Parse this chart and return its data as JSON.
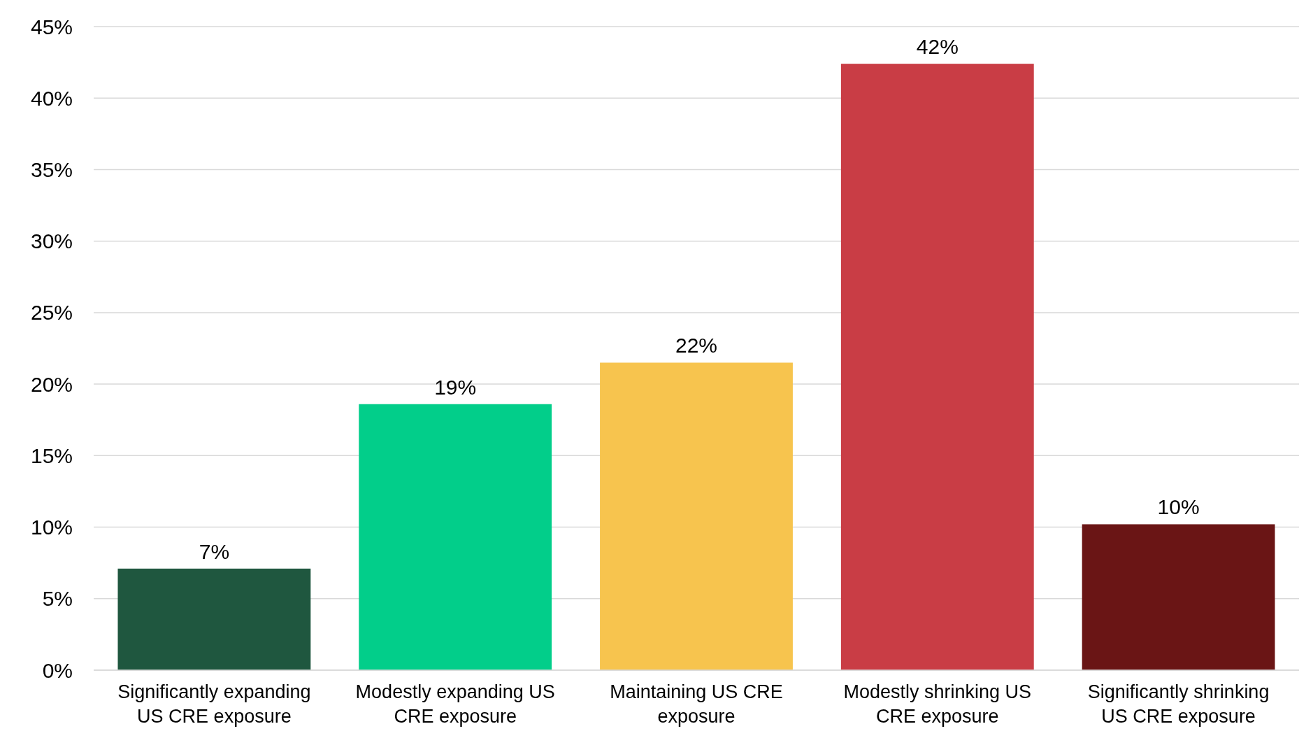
{
  "chart_data": {
    "type": "bar",
    "categories": [
      "Significantly expanding US CRE exposure",
      "Modestly expanding US CRE exposure",
      "Maintaining US CRE exposure",
      "Modestly shrinking US CRE exposure",
      "Significantly shrinking US CRE exposure"
    ],
    "values": [
      7.1,
      18.6,
      21.5,
      42.4,
      10.2
    ],
    "value_labels": [
      "7%",
      "19%",
      "22%",
      "42%",
      "10%"
    ],
    "colors": [
      "#1f573f",
      "#02ce8a",
      "#f7c44e",
      "#c93d45",
      "#6a1515"
    ],
    "ylim": [
      0,
      45
    ],
    "yticks": [
      {
        "value": 0,
        "label": "0%"
      },
      {
        "value": 5,
        "label": "5%"
      },
      {
        "value": 10,
        "label": "10%"
      },
      {
        "value": 15,
        "label": "15%"
      },
      {
        "value": 20,
        "label": "20%"
      },
      {
        "value": 25,
        "label": "25%"
      },
      {
        "value": 30,
        "label": "30%"
      },
      {
        "value": 35,
        "label": "35%"
      },
      {
        "value": 40,
        "label": "40%"
      },
      {
        "value": 45,
        "label": "45%"
      }
    ],
    "grid": "y"
  }
}
